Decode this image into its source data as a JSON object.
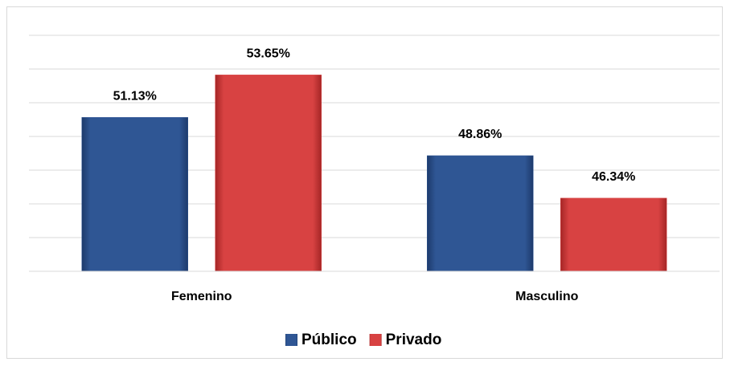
{
  "chart_data": {
    "type": "bar",
    "categories": [
      "Femenino",
      "Masculino"
    ],
    "series": [
      {
        "name": "Público",
        "color": "#2f5694",
        "values": [
          51.13,
          48.86
        ],
        "value_labels": [
          "51.13%",
          "48.86%"
        ]
      },
      {
        "name": "Privado",
        "color": "#d84242",
        "values": [
          53.65,
          46.34
        ],
        "value_labels": [
          "53.65%",
          "46.34%"
        ]
      }
    ],
    "ylim": [
      42,
      56
    ],
    "yticks": [
      42,
      44,
      46,
      48,
      50,
      52,
      54,
      56
    ],
    "grid": true,
    "legend": "bottom"
  }
}
